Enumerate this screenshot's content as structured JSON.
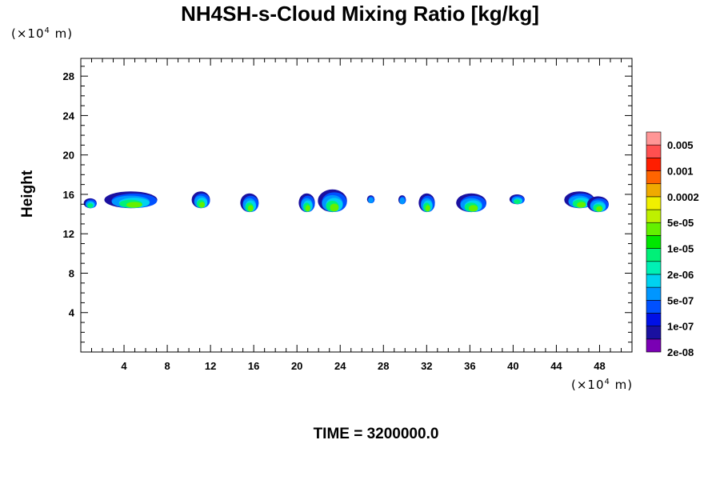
{
  "chart_data": {
    "type": "heatmap",
    "title": "NH4SH-s-Cloud Mixing Ratio [kg/kg]",
    "ylabel": "Height",
    "x_unit_prefix": "(×10",
    "x_unit_exp": "4",
    "x_unit_suffix": " m)",
    "y_unit_prefix": "(×10",
    "y_unit_exp": "4",
    "y_unit_suffix": " m)",
    "time_label": "TIME = 3200000.0",
    "xlim": [
      0,
      51
    ],
    "ylim": [
      0,
      29.8
    ],
    "x_ticks": [
      "4",
      "8",
      "12",
      "16",
      "20",
      "24",
      "28",
      "32",
      "36",
      "40",
      "44",
      "48"
    ],
    "y_ticks": [
      "4",
      "8",
      "12",
      "16",
      "20",
      "24",
      "28"
    ],
    "colorbar": {
      "labels": [
        "0.005",
        "0.001",
        "0.0002",
        "5e-05",
        "1e-05",
        "2e-06",
        "5e-07",
        "1e-07",
        "2e-08"
      ],
      "colors": [
        "#7a00b4",
        "#1a10a0",
        "#0010e6",
        "#0050ff",
        "#0096ff",
        "#00d2f0",
        "#00f0b4",
        "#00f078",
        "#00e600",
        "#64f000",
        "#bef000",
        "#f0f000",
        "#f0aa00",
        "#ff6400",
        "#ff1e00",
        "#ff5050",
        "#ff9696"
      ]
    },
    "cells": [
      {
        "x": [
          0.3,
          1.5
        ],
        "y": [
          14.6,
          15.6
        ],
        "top": 1
      },
      {
        "x": [
          2.3,
          7.2
        ],
        "y": [
          14.6,
          16.3
        ],
        "top": 2
      },
      {
        "x": [
          10.3,
          12.0
        ],
        "y": [
          14.6,
          16.3
        ],
        "top": 2
      },
      {
        "x": [
          14.8,
          16.5
        ],
        "y": [
          14.2,
          16.1
        ],
        "top": 2
      },
      {
        "x": [
          20.2,
          21.7
        ],
        "y": [
          14.2,
          16.1
        ],
        "top": 2
      },
      {
        "x": [
          22.0,
          24.7
        ],
        "y": [
          14.2,
          16.5
        ],
        "top": 2
      },
      {
        "x": [
          26.5,
          27.2
        ],
        "y": [
          15.1,
          15.9
        ],
        "top": 0
      },
      {
        "x": [
          29.4,
          30.1
        ],
        "y": [
          15.0,
          15.9
        ],
        "top": 0
      },
      {
        "x": [
          31.3,
          32.8
        ],
        "y": [
          14.2,
          16.1
        ],
        "top": 2
      },
      {
        "x": [
          34.8,
          37.6
        ],
        "y": [
          14.2,
          16.1
        ],
        "top": 2
      },
      {
        "x": [
          39.7,
          41.1
        ],
        "y": [
          15.0,
          16.0
        ],
        "top": 1
      },
      {
        "x": [
          44.8,
          47.6
        ],
        "y": [
          14.6,
          16.3
        ],
        "top": 2
      },
      {
        "x": [
          46.9,
          48.9
        ],
        "y": [
          14.2,
          15.8
        ],
        "top": 2
      }
    ]
  }
}
